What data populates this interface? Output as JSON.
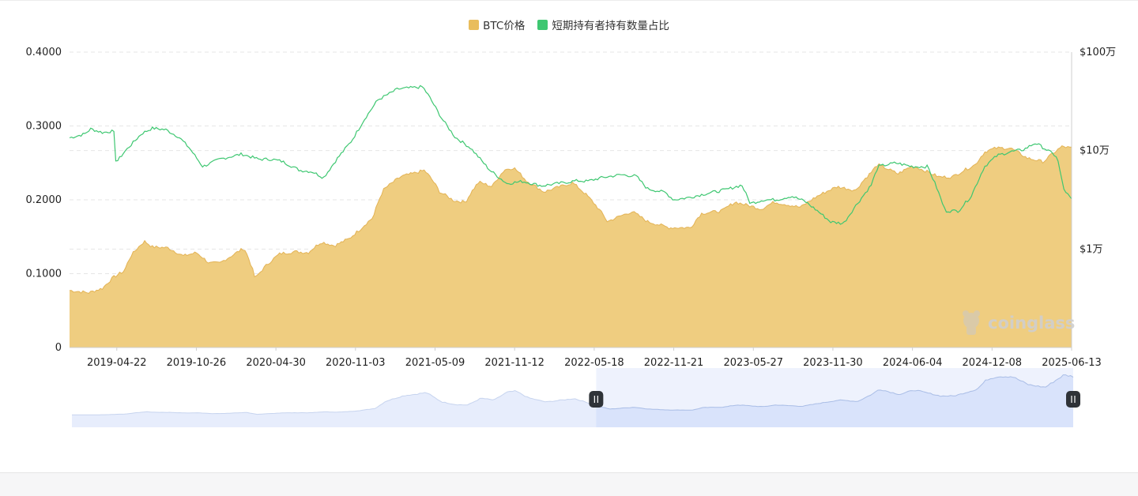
{
  "legend": {
    "price_label": "BTC价格",
    "ratio_label": "短期持有者持有数量占比"
  },
  "watermark": {
    "text": "coinglass"
  },
  "colors": {
    "price_fill": "#efcd80",
    "price_line": "#e3b355",
    "ratio_line": "#3ec771",
    "ratio_swatch": "#3ec771",
    "price_swatch": "#e9bd5c",
    "grid": "#e6e6e6",
    "zoom_fill": "#d6e1fb",
    "zoom_line": "#a9bde6",
    "zoom_bg": "#eef2fd"
  },
  "chart_data": {
    "type": "area",
    "left_axis": {
      "ticks": [
        "0.4000",
        "0.3000",
        "0.2000",
        "0.1000",
        "0"
      ],
      "range": [
        0,
        0.4
      ]
    },
    "right_axis": {
      "ticks": [
        "$100万",
        "$10万",
        "$1万"
      ],
      "scale": "log",
      "range": [
        1000,
        1000000
      ]
    },
    "x_tick_labels": [
      "2019-04-22",
      "2019-10-26",
      "2020-04-30",
      "2020-11-03",
      "2021-05-09",
      "2021-11-12",
      "2022-05-18",
      "2022-11-21",
      "2023-05-27",
      "2023-11-30",
      "2024-06-04",
      "2024-12-08",
      "2025-06-13"
    ],
    "grid": "horizontal dashed",
    "legend_position": "top-center",
    "series": [
      {
        "name": "BTC价格",
        "axis": "right",
        "kind": "area",
        "points": [
          [
            "2019-01-01",
            3800
          ],
          [
            "2019-02-15",
            3600
          ],
          [
            "2019-03-20",
            4000
          ],
          [
            "2019-04-15",
            5200
          ],
          [
            "2019-05-10",
            6000
          ],
          [
            "2019-05-25",
            8500
          ],
          [
            "2019-06-26",
            12000
          ],
          [
            "2019-07-15",
            10500
          ],
          [
            "2019-08-20",
            10300
          ],
          [
            "2019-09-25",
            8500
          ],
          [
            "2019-10-26",
            9200
          ],
          [
            "2019-11-25",
            7200
          ],
          [
            "2019-12-20",
            7200
          ],
          [
            "2020-01-20",
            8700
          ],
          [
            "2020-02-15",
            10200
          ],
          [
            "2020-03-12",
            5000
          ],
          [
            "2020-04-10",
            7000
          ],
          [
            "2020-05-10",
            9000
          ],
          [
            "2020-06-15",
            9400
          ],
          [
            "2020-07-15",
            9200
          ],
          [
            "2020-08-15",
            11800
          ],
          [
            "2020-09-15",
            10800
          ],
          [
            "2020-10-20",
            12800
          ],
          [
            "2020-11-15",
            16000
          ],
          [
            "2020-12-15",
            21000
          ],
          [
            "2021-01-08",
            40000
          ],
          [
            "2021-02-20",
            55000
          ],
          [
            "2021-03-15",
            58000
          ],
          [
            "2021-04-14",
            63000
          ],
          [
            "2021-05-20",
            38000
          ],
          [
            "2021-06-22",
            31000
          ],
          [
            "2021-07-20",
            30000
          ],
          [
            "2021-08-20",
            48000
          ],
          [
            "2021-09-20",
            43000
          ],
          [
            "2021-10-20",
            64000
          ],
          [
            "2021-11-10",
            67000
          ],
          [
            "2021-12-10",
            49000
          ],
          [
            "2022-01-20",
            38000
          ],
          [
            "2022-03-28",
            47000
          ],
          [
            "2022-05-18",
            29000
          ],
          [
            "2022-06-18",
            19000
          ],
          [
            "2022-08-15",
            24000
          ],
          [
            "2022-09-20",
            19000
          ],
          [
            "2022-11-10",
            16500
          ],
          [
            "2022-12-31",
            16500
          ],
          [
            "2023-01-25",
            23000
          ],
          [
            "2023-03-15",
            24500
          ],
          [
            "2023-04-14",
            30000
          ],
          [
            "2023-06-15",
            25500
          ],
          [
            "2023-07-15",
            30000
          ],
          [
            "2023-09-15",
            26500
          ],
          [
            "2023-10-25",
            34500
          ],
          [
            "2023-12-10",
            43000
          ],
          [
            "2024-01-23",
            39500
          ],
          [
            "2024-02-28",
            60000
          ],
          [
            "2024-03-14",
            72000
          ],
          [
            "2024-05-01",
            58000
          ],
          [
            "2024-06-04",
            70000
          ],
          [
            "2024-08-05",
            54000
          ],
          [
            "2024-09-06",
            54000
          ],
          [
            "2024-10-30",
            72000
          ],
          [
            "2024-11-22",
            98000
          ],
          [
            "2024-12-17",
            106000
          ],
          [
            "2025-01-20",
            106000
          ],
          [
            "2025-02-28",
            84000
          ],
          [
            "2025-04-08",
            77000
          ],
          [
            "2025-05-22",
            110000
          ],
          [
            "2025-06-13",
            106000
          ]
        ]
      },
      {
        "name": "短期持有者持有数量占比",
        "axis": "left",
        "kind": "line",
        "points": [
          [
            "2019-01-01",
            0.284
          ],
          [
            "2019-02-05",
            0.289
          ],
          [
            "2019-02-20",
            0.296
          ],
          [
            "2019-03-20",
            0.291
          ],
          [
            "2019-04-10",
            0.293
          ],
          [
            "2019-04-17",
            0.29
          ],
          [
            "2019-04-20",
            0.25
          ],
          [
            "2019-05-10",
            0.265
          ],
          [
            "2019-06-20",
            0.29
          ],
          [
            "2019-07-15",
            0.297
          ],
          [
            "2019-08-15",
            0.295
          ],
          [
            "2019-09-15",
            0.285
          ],
          [
            "2019-10-10",
            0.27
          ],
          [
            "2019-11-10",
            0.245
          ],
          [
            "2019-12-20",
            0.255
          ],
          [
            "2020-02-10",
            0.262
          ],
          [
            "2020-03-20",
            0.255
          ],
          [
            "2020-04-20",
            0.255
          ],
          [
            "2020-05-15",
            0.252
          ],
          [
            "2020-06-25",
            0.24
          ],
          [
            "2020-07-25",
            0.238
          ],
          [
            "2020-08-20",
            0.23
          ],
          [
            "2020-09-20",
            0.255
          ],
          [
            "2020-10-25",
            0.28
          ],
          [
            "2020-11-25",
            0.31
          ],
          [
            "2020-12-25",
            0.335
          ],
          [
            "2021-02-10",
            0.35
          ],
          [
            "2021-03-20",
            0.352
          ],
          [
            "2021-04-10",
            0.353
          ],
          [
            "2021-04-25",
            0.34
          ],
          [
            "2021-05-25",
            0.31
          ],
          [
            "2021-06-25",
            0.285
          ],
          [
            "2021-08-01",
            0.27
          ],
          [
            "2021-09-15",
            0.24
          ],
          [
            "2021-10-25",
            0.222
          ],
          [
            "2021-12-01",
            0.225
          ],
          [
            "2022-01-15",
            0.219
          ],
          [
            "2022-02-20",
            0.222
          ],
          [
            "2022-04-10",
            0.226
          ],
          [
            "2022-05-01",
            0.225
          ],
          [
            "2022-06-05",
            0.23
          ],
          [
            "2022-07-20",
            0.234
          ],
          [
            "2022-08-25",
            0.232
          ],
          [
            "2022-09-20",
            0.215
          ],
          [
            "2022-11-01",
            0.21
          ],
          [
            "2022-11-21",
            0.2
          ],
          [
            "2022-12-25",
            0.203
          ],
          [
            "2023-02-10",
            0.209
          ],
          [
            "2023-03-25",
            0.214
          ],
          [
            "2023-04-30",
            0.22
          ],
          [
            "2023-05-20",
            0.195
          ],
          [
            "2023-06-20",
            0.2
          ],
          [
            "2023-07-20",
            0.2
          ],
          [
            "2023-08-25",
            0.205
          ],
          [
            "2023-09-25",
            0.198
          ],
          [
            "2023-10-25",
            0.185
          ],
          [
            "2023-11-25",
            0.17
          ],
          [
            "2023-12-25",
            0.168
          ],
          [
            "2024-01-20",
            0.19
          ],
          [
            "2024-02-28",
            0.22
          ],
          [
            "2024-03-15",
            0.245
          ],
          [
            "2024-04-25",
            0.25
          ],
          [
            "2024-06-04",
            0.245
          ],
          [
            "2024-07-10",
            0.245
          ],
          [
            "2024-08-01",
            0.215
          ],
          [
            "2024-08-20",
            0.185
          ],
          [
            "2024-09-20",
            0.185
          ],
          [
            "2024-10-20",
            0.205
          ],
          [
            "2024-11-20",
            0.245
          ],
          [
            "2024-12-20",
            0.26
          ],
          [
            "2025-01-20",
            0.265
          ],
          [
            "2025-02-20",
            0.268
          ],
          [
            "2025-03-20",
            0.277
          ],
          [
            "2025-04-15",
            0.268
          ],
          [
            "2025-05-10",
            0.258
          ],
          [
            "2025-05-25",
            0.215
          ],
          [
            "2025-06-13",
            0.2
          ]
        ]
      }
    ],
    "zoom_slider": {
      "selected_range": [
        "2022-05-18",
        "2025-06-13"
      ]
    }
  }
}
